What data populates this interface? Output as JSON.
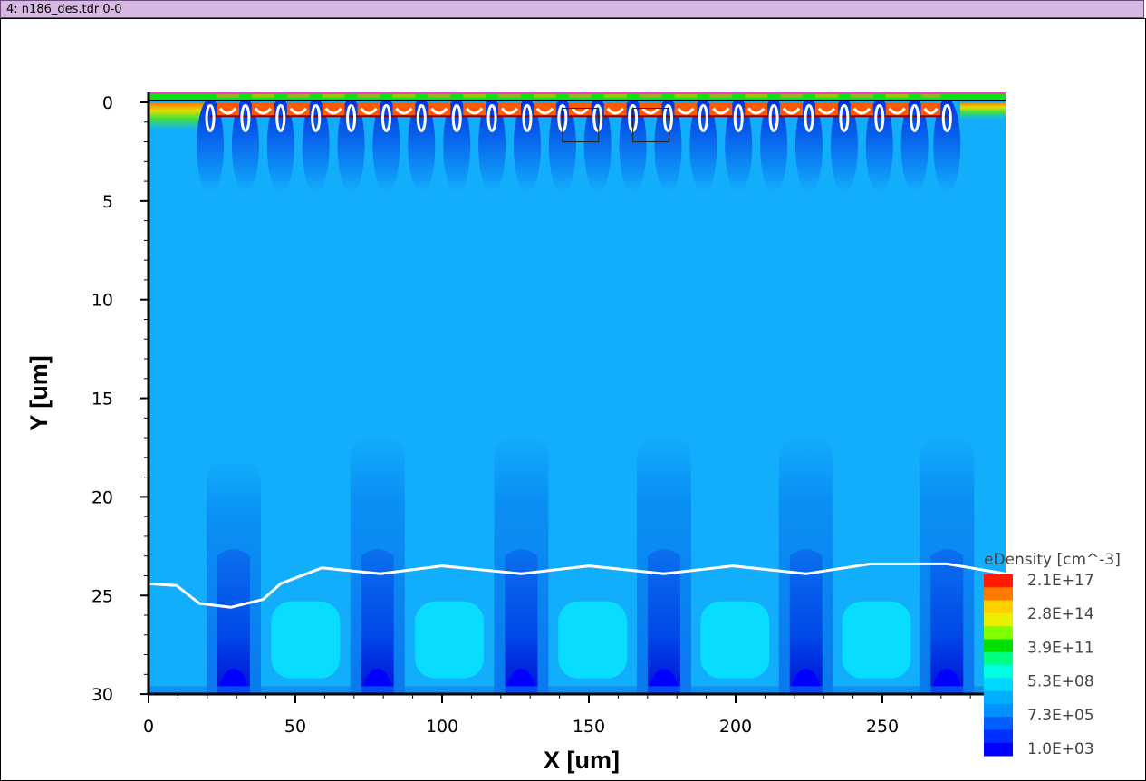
{
  "window": {
    "title": "4: n186_des.tdr 0-0"
  },
  "chart_data": {
    "type": "heatmap",
    "title": "",
    "xlabel": "X [um]",
    "ylabel": "Y [um]",
    "xlim": [
      0,
      292
    ],
    "ylim": [
      30,
      -0.5
    ],
    "x_ticks": [
      0,
      50,
      100,
      150,
      200,
      250
    ],
    "x_tick_labels": [
      "0",
      "50",
      "100",
      "150",
      "200",
      "250"
    ],
    "y_ticks": [
      0,
      5,
      10,
      15,
      20,
      25,
      30
    ],
    "y_tick_labels": [
      "0",
      "5",
      "10",
      "15",
      "20",
      "25",
      "30"
    ],
    "legend": {
      "title": "eDensity [cm^-3]",
      "placement": "bottom-right",
      "scale": "log",
      "labels": [
        "2.1E+17",
        "2.8E+14",
        "3.9E+11",
        "5.3E+08",
        "7.3E+05",
        "1.0E+03"
      ],
      "colors": [
        "#ff1a00",
        "#ff7a00",
        "#ffd000",
        "#e8f000",
        "#80ff00",
        "#00e000",
        "#00ff80",
        "#00ffe0",
        "#00d8ff",
        "#00b0ff",
        "#0090ff",
        "#0060ff",
        "#0030ff",
        "#0000ff"
      ]
    },
    "field_colors": {
      "bulk": "#12aefc",
      "column": "#0a7cf0",
      "column_core": "#0038e6",
      "pocket": "#08dcff",
      "finger": "#1a58f0",
      "surface_hot": "#ff5a00",
      "surface_green": "#10e010",
      "contour": "#ffffff",
      "region_outline": "#8b0000"
    },
    "finger_x": [
      21,
      33,
      45,
      57,
      69,
      81,
      93,
      105,
      117,
      129,
      141,
      153,
      165,
      177,
      189,
      201,
      213,
      225,
      237,
      249,
      261,
      272
    ],
    "column_x": [
      29,
      78,
      127,
      175.6,
      224,
      272
    ],
    "junction_contour": [
      [
        0,
        24.4
      ],
      [
        9.6,
        24.5
      ],
      [
        17.3,
        25.4
      ],
      [
        28,
        25.6
      ],
      [
        39,
        25.2
      ],
      [
        45,
        24.4
      ],
      [
        59,
        23.6
      ],
      [
        79,
        23.9
      ],
      [
        100,
        23.5
      ],
      [
        127,
        23.9
      ],
      [
        150,
        23.5
      ],
      [
        175.6,
        23.9
      ],
      [
        199,
        23.5
      ],
      [
        224,
        23.9
      ],
      [
        246,
        23.4
      ],
      [
        272,
        23.4
      ],
      [
        292,
        23.9
      ]
    ]
  }
}
